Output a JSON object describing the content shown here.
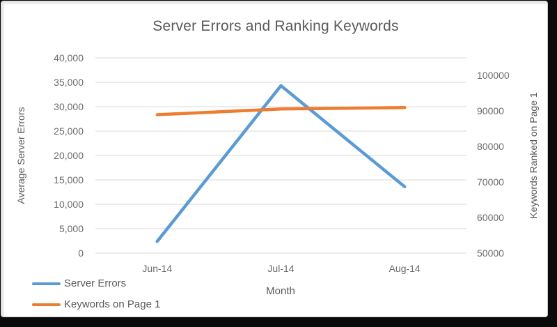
{
  "chart_data": {
    "type": "line",
    "title": "Server Errors and Ranking Keywords",
    "xlabel": "Month",
    "categories": [
      "Jun-14",
      "Jul-14",
      "Aug-14"
    ],
    "series": [
      {
        "name": "Server Errors",
        "axis": "left",
        "color": "#5B9BD5",
        "values": [
          2400,
          34300,
          13600
        ]
      },
      {
        "name": "Keywords on Page 1",
        "axis": "right",
        "color": "#ED7D31",
        "values": [
          89000,
          90600,
          91000
        ]
      }
    ],
    "left_axis": {
      "title": "Average Server Errors",
      "min": 0,
      "max": 40000,
      "tick_values": [
        0,
        5000,
        10000,
        15000,
        20000,
        25000,
        30000,
        35000,
        40000
      ],
      "ticks": [
        "0",
        "5,000",
        "10,000",
        "15,000",
        "20,000",
        "25,000",
        "30,000",
        "35,000",
        "40,000"
      ]
    },
    "right_axis": {
      "title": "Keywords Ranked on Page 1",
      "min": 50000,
      "max": 105000,
      "tick_values": [
        50000,
        60000,
        70000,
        80000,
        90000,
        100000
      ],
      "ticks": [
        "50000",
        "60000",
        "70000",
        "80000",
        "90000",
        "100000"
      ]
    },
    "grid": true,
    "grid_color": "#d9d9d9",
    "legend_position": "bottom-left"
  }
}
